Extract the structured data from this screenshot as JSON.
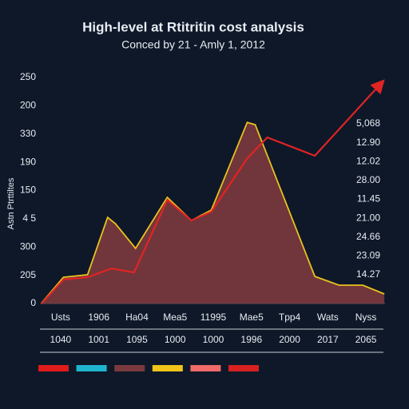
{
  "chart_data": {
    "type": "area",
    "title": "High-level at Rtitritin cost analysis",
    "subtitle": "Conced by 21 - Amly 1, 2012",
    "y_label": "Astn Ptrttiltes",
    "categories": [
      "Usts",
      "1906",
      "Ha04",
      "Mea5",
      "11995",
      "Mae5",
      "Tpp4",
      "Wats",
      "Nyss"
    ],
    "categories2": [
      "1040",
      "1001",
      "1095",
      "1000",
      "1000",
      "1996",
      "2000",
      "2017",
      "2065"
    ],
    "xlim": [
      -0.5,
      8.6
    ],
    "ylim": [
      0,
      8
    ],
    "yticks": [
      {
        "value": 0,
        "label": "0"
      },
      {
        "value": 1,
        "label": "205"
      },
      {
        "value": 2,
        "label": "300"
      },
      {
        "value": 3,
        "label": "4 5"
      },
      {
        "value": 4,
        "label": "150"
      },
      {
        "value": 5,
        "label": "190"
      },
      {
        "value": 6,
        "label": "330"
      },
      {
        "value": 7,
        "label": "200"
      },
      {
        "value": 8,
        "label": "250"
      }
    ],
    "right_labels": [
      "5,068",
      "12.90",
      "12.02",
      "28.00",
      "11.45",
      "21.00",
      "24.66",
      "23.09",
      "14.27"
    ],
    "series": [
      {
        "color": "#7a3a3d",
        "stroke": "#e8c21e",
        "x": [
          -0.51,
          0.08,
          0.72,
          1.25,
          1.46,
          1.99,
          2.83,
          3.47,
          4.0,
          4.95,
          5.16,
          6.74,
          7.38,
          8.01,
          8.58
        ],
        "values": [
          0,
          0.93,
          1.02,
          3.05,
          2.82,
          1.95,
          3.76,
          2.94,
          3.31,
          6.41,
          6.33,
          0.96,
          0.65,
          0.65,
          0.34
        ]
      },
      {
        "color": "#e02424",
        "x": [
          -0.5,
          0.08,
          0.72,
          1.35,
          1.95,
          2.83,
          3.47,
          4.0,
          4.95,
          5.48,
          6.74,
          8.5
        ],
        "values": [
          0,
          0.85,
          0.93,
          1.24,
          1.1,
          3.67,
          2.94,
          3.25,
          5.14,
          5.88,
          5.23,
          7.8
        ]
      }
    ],
    "legend_colors": [
      "#e01b1b",
      "#1fb5cf",
      "#7a3a3d",
      "#f0c419",
      "#f06a6a",
      "#d82020"
    ]
  }
}
